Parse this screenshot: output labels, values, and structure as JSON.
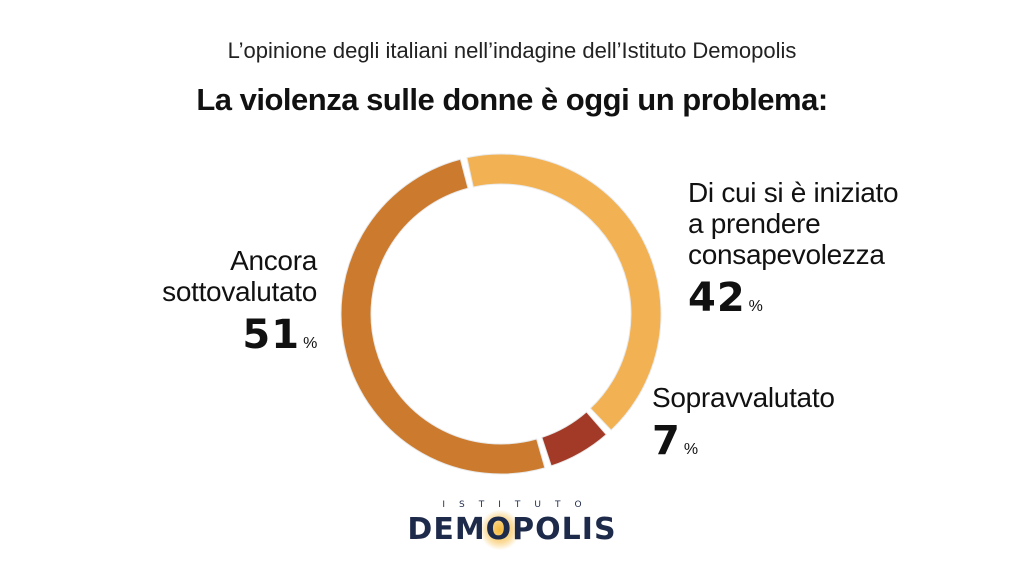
{
  "header": {
    "subtitle": "L’opinione degli italiani nell’indagine dell’Istituto Demopolis",
    "title": "La violenza sulle donne è oggi un problema:"
  },
  "chart_data": {
    "type": "pie",
    "title": "La violenza sulle donne è oggi un problema:",
    "subtitle": "L’opinione degli italiani nell’indagine dell’Istituto Demopolis",
    "style": "donut",
    "slices": [
      {
        "label": "Di cui si è iniziato a prendere consapevolezza",
        "value": 42,
        "color": "#f2b152"
      },
      {
        "label": "Sopravvalutato",
        "value": 7,
        "color": "#a33a28"
      },
      {
        "label": "Ancora sottovalutato",
        "value": 51,
        "color": "#cc7b2e"
      }
    ],
    "unit": "%"
  },
  "labels": {
    "left": {
      "line1": "Ancora",
      "line2": "sottovalutato",
      "value": "51",
      "unit": "%"
    },
    "right": {
      "line1": "Di cui si è iniziato",
      "line2": "a prendere",
      "line3": "consapevolezza",
      "value": "42",
      "unit": "%"
    },
    "small": {
      "line1": "Sopravvalutato",
      "value": "7",
      "unit": "%"
    }
  },
  "logo": {
    "top": "ISTITUTO",
    "main": "DEMOPOLIS",
    "accent_color": "#f6b93b",
    "text_color": "#1e2a4a"
  }
}
